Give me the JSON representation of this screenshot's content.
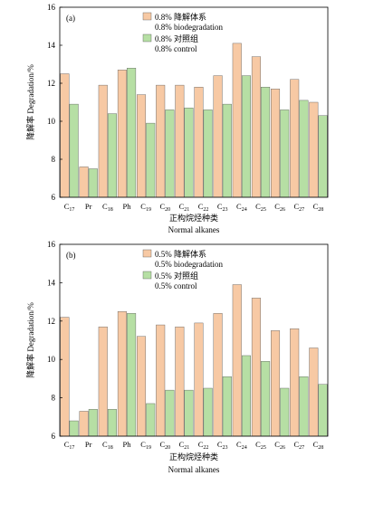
{
  "colors": {
    "biodegradation": "#f7c9a4",
    "control": "#b6dfa4",
    "axis": "#000000"
  },
  "chart_data": [
    {
      "type": "bar",
      "panel_label": "(a)",
      "xlabel_cn": "正构烷烃种类",
      "xlabel": "Normal alkanes",
      "ylabel": "降解率 Degradation/%",
      "ylim": [
        6,
        16
      ],
      "yticks": [
        6,
        8,
        10,
        12,
        14,
        16
      ],
      "grid": false,
      "legend_placement": "top-center",
      "categories": [
        "C17",
        "Pr",
        "C18",
        "Ph",
        "C19",
        "C20",
        "C21",
        "C22",
        "C23",
        "C24",
        "C25",
        "C26",
        "C27",
        "C28"
      ],
      "category_labels": [
        {
          "base": "C",
          "sub": "17"
        },
        {
          "base": "Pr",
          "sub": ""
        },
        {
          "base": "C",
          "sub": "18"
        },
        {
          "base": "Ph",
          "sub": ""
        },
        {
          "base": "C",
          "sub": "19"
        },
        {
          "base": "C",
          "sub": "20"
        },
        {
          "base": "C",
          "sub": "21"
        },
        {
          "base": "C",
          "sub": "22"
        },
        {
          "base": "C",
          "sub": "23"
        },
        {
          "base": "C",
          "sub": "24"
        },
        {
          "base": "C",
          "sub": "25"
        },
        {
          "base": "C",
          "sub": "26"
        },
        {
          "base": "C",
          "sub": "27"
        },
        {
          "base": "C",
          "sub": "28"
        }
      ],
      "series": [
        {
          "name_cn": "0.8% 降解体系",
          "name": "0.8% biodegradation",
          "values": [
            12.5,
            7.6,
            11.9,
            12.7,
            11.4,
            11.9,
            11.9,
            11.8,
            12.4,
            14.1,
            13.4,
            11.7,
            12.2,
            11.0
          ]
        },
        {
          "name_cn": "0.8% 对照组",
          "name": "0.8% control",
          "values": [
            10.9,
            7.5,
            10.4,
            12.8,
            9.9,
            10.6,
            10.7,
            10.6,
            10.9,
            12.4,
            11.8,
            10.6,
            11.1,
            10.3
          ]
        }
      ]
    },
    {
      "type": "bar",
      "panel_label": "(b)",
      "xlabel_cn": "正构烷烃种类",
      "xlabel": "Normal alkanes",
      "ylabel": "降解率 Degradation/%",
      "ylim": [
        6,
        16
      ],
      "yticks": [
        6,
        8,
        10,
        12,
        14,
        16
      ],
      "grid": false,
      "legend_placement": "top-center",
      "categories": [
        "C17",
        "Pr",
        "C18",
        "Ph",
        "C19",
        "C20",
        "C21",
        "C22",
        "C23",
        "C24",
        "C25",
        "C26",
        "C27",
        "C28"
      ],
      "category_labels": [
        {
          "base": "C",
          "sub": "17"
        },
        {
          "base": "Pr",
          "sub": ""
        },
        {
          "base": "C",
          "sub": "18"
        },
        {
          "base": "Ph",
          "sub": ""
        },
        {
          "base": "C",
          "sub": "19"
        },
        {
          "base": "C",
          "sub": "20"
        },
        {
          "base": "C",
          "sub": "21"
        },
        {
          "base": "C",
          "sub": "22"
        },
        {
          "base": "C",
          "sub": "23"
        },
        {
          "base": "C",
          "sub": "24"
        },
        {
          "base": "C",
          "sub": "25"
        },
        {
          "base": "C",
          "sub": "26"
        },
        {
          "base": "C",
          "sub": "27"
        },
        {
          "base": "C",
          "sub": "28"
        }
      ],
      "series": [
        {
          "name_cn": "0.5% 降解体系",
          "name": "0.5% biodegradation",
          "values": [
            12.2,
            7.3,
            11.7,
            12.5,
            11.2,
            11.8,
            11.7,
            11.9,
            12.4,
            13.9,
            13.2,
            11.5,
            11.6,
            10.6
          ]
        },
        {
          "name_cn": "0.5% 对照组",
          "name": "0.5% control",
          "values": [
            6.8,
            7.4,
            7.4,
            12.4,
            7.7,
            8.4,
            8.4,
            8.5,
            9.1,
            10.2,
            9.9,
            8.5,
            9.1,
            8.7
          ]
        }
      ]
    }
  ]
}
